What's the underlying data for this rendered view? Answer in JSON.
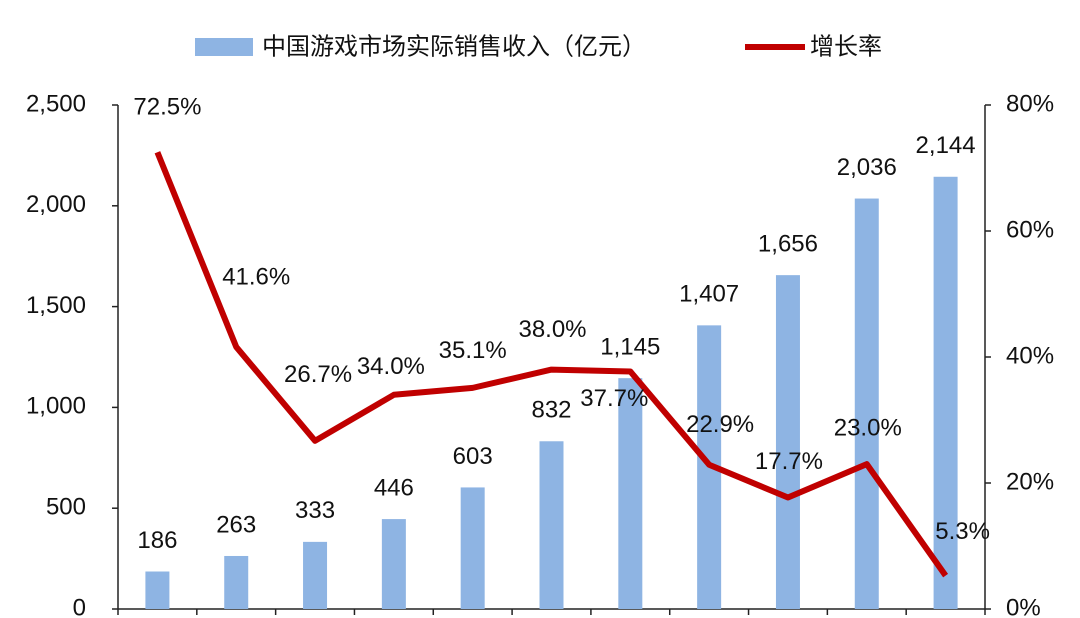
{
  "chart_data": {
    "type": "bar",
    "categories": [
      null,
      null,
      null,
      null,
      null,
      null,
      null,
      null,
      null,
      null,
      null
    ],
    "series": [
      {
        "name": "中国游戏市场实际销售收入（亿元）",
        "type": "bar",
        "color": "#8eb4e3",
        "values": [
          186,
          263,
          333,
          446,
          603,
          832,
          1145,
          1407,
          1656,
          2036,
          2144
        ],
        "value_labels": [
          "186",
          "263",
          "333",
          "446",
          "603",
          "832",
          "1,145",
          "1,407",
          "1,656",
          "2,036",
          "2,144"
        ]
      },
      {
        "name": "增长率",
        "type": "line",
        "color": "#c00000",
        "axis": "y2",
        "values": [
          72.5,
          41.6,
          26.7,
          34.0,
          35.1,
          38.0,
          37.7,
          22.9,
          17.7,
          23.0,
          5.3
        ],
        "value_labels": [
          "72.5%",
          "41.6%",
          "26.7%",
          "34.0%",
          "35.1%",
          "38.0%",
          "37.7%",
          "22.9%",
          "17.7%",
          "23.0%",
          "5.3%"
        ]
      }
    ],
    "ylim": [
      0,
      2500
    ],
    "yticks": [
      0,
      500,
      {
        "value": 1000,
        "label": "1,000"
      },
      {
        "value": 1500,
        "label": "1,500"
      },
      {
        "value": 2000,
        "label": "2,000"
      },
      {
        "value": 2500,
        "label": "2,500"
      }
    ],
    "y2lim": [
      0,
      80
    ],
    "y2ticks": [
      {
        "value": 0,
        "label": "0%"
      },
      {
        "value": 20,
        "label": "20%"
      },
      {
        "value": 40,
        "label": "40%"
      },
      {
        "value": 60,
        "label": "60%"
      },
      {
        "value": 80,
        "label": "80%"
      }
    ],
    "grid": false,
    "legend": "top"
  }
}
